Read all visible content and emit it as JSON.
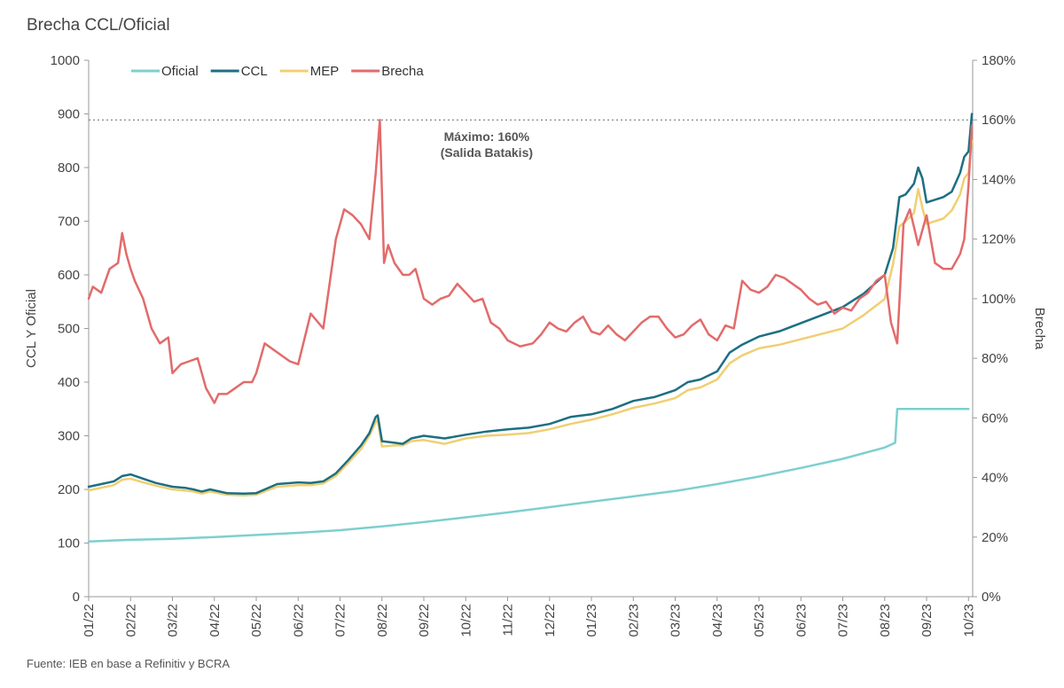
{
  "title": "Brecha CCL/Oficial",
  "source": "Fuente: IEB en base a Refinitiv y BCRA",
  "colors": {
    "oficial": "#7ecfcf",
    "ccl": "#1d6f82",
    "mep": "#f0cf73",
    "brecha": "#e26b6b",
    "axis": "#999999",
    "ref_line": "#666666"
  },
  "chart_data": {
    "type": "line",
    "title": "Brecha CCL/Oficial",
    "xlabel": "",
    "ylabel": "CCL Y Oficial",
    "y2label": "Brecha",
    "ylim": [
      0,
      1000
    ],
    "y2lim": [
      0,
      180
    ],
    "x_range": [
      0,
      21.1
    ],
    "yticks": [
      "0",
      "100",
      "200",
      "300",
      "400",
      "500",
      "600",
      "700",
      "800",
      "900",
      "1000"
    ],
    "y2ticks": [
      "0%",
      "20%",
      "40%",
      "60%",
      "80%",
      "100%",
      "120%",
      "140%",
      "160%",
      "180%"
    ],
    "x_tick_labels": [
      "01/22",
      "02/22",
      "03/22",
      "04/22",
      "05/22",
      "06/22",
      "07/22",
      "08/22",
      "09/22",
      "10/22",
      "11/22",
      "12/22",
      "01/23",
      "02/23",
      "03/23",
      "04/23",
      "05/23",
      "06/23",
      "07/23",
      "08/23",
      "09/23",
      "10/23"
    ],
    "legend": [
      "Oficial",
      "CCL",
      "MEP",
      "Brecha"
    ],
    "legend_position": "top-left",
    "reference_line": {
      "y2": 160,
      "style": "dotted"
    },
    "annotation": {
      "line1": "Máximo: 160%",
      "line2": "(Salida Batakis)",
      "x": 9.5,
      "y2": 160
    },
    "series": [
      {
        "name": "Oficial",
        "axis": "left",
        "x": [
          0,
          1,
          2,
          3,
          4,
          5,
          6,
          7,
          8,
          9,
          10,
          11,
          12,
          13,
          14,
          15,
          16,
          17,
          18,
          19,
          19.25,
          19.3,
          19.6,
          20,
          20.5,
          21.0
        ],
        "values": [
          103,
          106,
          108,
          111,
          115,
          119,
          124,
          131,
          139,
          148,
          157,
          167,
          177,
          187,
          197,
          210,
          224,
          240,
          257,
          278,
          287,
          350,
          350,
          350,
          350,
          350
        ]
      },
      {
        "name": "CCL",
        "axis": "left",
        "x": [
          0,
          0.3,
          0.6,
          0.8,
          1.0,
          1.3,
          1.6,
          2.0,
          2.3,
          2.5,
          2.7,
          2.9,
          3.3,
          3.7,
          4.0,
          4.5,
          5.0,
          5.3,
          5.6,
          5.9,
          6.2,
          6.5,
          6.7,
          6.85,
          6.9,
          7.0,
          7.3,
          7.5,
          7.7,
          8.0,
          8.5,
          9.0,
          9.5,
          10.0,
          10.5,
          11.0,
          11.5,
          12.0,
          12.5,
          13.0,
          13.5,
          14.0,
          14.3,
          14.6,
          15.0,
          15.3,
          15.6,
          16.0,
          16.5,
          17.0,
          17.5,
          18.0,
          18.5,
          19.0,
          19.2,
          19.35,
          19.5,
          19.7,
          19.8,
          19.9,
          20.0,
          20.2,
          20.4,
          20.6,
          20.8,
          20.9,
          21.0,
          21.08
        ],
        "values": [
          205,
          210,
          215,
          225,
          228,
          220,
          212,
          205,
          203,
          200,
          196,
          200,
          193,
          192,
          193,
          210,
          213,
          212,
          215,
          230,
          255,
          282,
          305,
          335,
          338,
          290,
          287,
          285,
          295,
          300,
          295,
          302,
          308,
          312,
          315,
          322,
          335,
          340,
          350,
          365,
          372,
          385,
          400,
          405,
          420,
          455,
          470,
          485,
          495,
          510,
          525,
          540,
          565,
          600,
          650,
          745,
          750,
          770,
          800,
          780,
          735,
          740,
          745,
          755,
          790,
          820,
          830,
          900
        ]
      },
      {
        "name": "MEP",
        "axis": "left",
        "x": [
          0,
          0.3,
          0.6,
          0.8,
          1.0,
          1.3,
          1.6,
          2.0,
          2.3,
          2.5,
          2.7,
          2.9,
          3.3,
          3.7,
          4.0,
          4.5,
          5.0,
          5.3,
          5.6,
          5.9,
          6.2,
          6.5,
          6.7,
          6.85,
          6.9,
          7.0,
          7.3,
          7.5,
          7.7,
          8.0,
          8.5,
          9.0,
          9.5,
          10.0,
          10.5,
          11.0,
          11.5,
          12.0,
          12.5,
          13.0,
          13.5,
          14.0,
          14.3,
          14.6,
          15.0,
          15.3,
          15.6,
          16.0,
          16.5,
          17.0,
          17.5,
          18.0,
          18.5,
          19.0,
          19.2,
          19.35,
          19.5,
          19.7,
          19.8,
          19.9,
          20.0,
          20.2,
          20.4,
          20.6,
          20.8,
          20.9,
          21.0,
          21.08
        ],
        "values": [
          198,
          203,
          208,
          218,
          220,
          213,
          207,
          200,
          198,
          196,
          192,
          196,
          190,
          189,
          190,
          205,
          208,
          208,
          211,
          225,
          250,
          275,
          300,
          325,
          330,
          280,
          282,
          282,
          290,
          292,
          285,
          295,
          300,
          302,
          305,
          312,
          322,
          330,
          340,
          352,
          360,
          370,
          385,
          390,
          405,
          435,
          450,
          463,
          470,
          480,
          490,
          500,
          525,
          555,
          620,
          690,
          700,
          715,
          760,
          725,
          695,
          700,
          705,
          720,
          750,
          780,
          790,
          850
        ]
      },
      {
        "name": "Brecha",
        "axis": "right",
        "x": [
          0,
          0.1,
          0.3,
          0.5,
          0.7,
          0.8,
          0.9,
          1.0,
          1.1,
          1.3,
          1.5,
          1.7,
          1.9,
          2.0,
          2.2,
          2.4,
          2.6,
          2.8,
          3.0,
          3.1,
          3.3,
          3.5,
          3.7,
          3.9,
          4.0,
          4.2,
          4.5,
          4.8,
          5.0,
          5.3,
          5.6,
          5.9,
          6.1,
          6.3,
          6.5,
          6.7,
          6.85,
          6.95,
          7.05,
          7.15,
          7.3,
          7.5,
          7.65,
          7.8,
          8.0,
          8.2,
          8.4,
          8.6,
          8.8,
          9.0,
          9.2,
          9.4,
          9.6,
          9.8,
          10.0,
          10.3,
          10.6,
          10.8,
          11.0,
          11.2,
          11.4,
          11.6,
          11.8,
          12.0,
          12.2,
          12.4,
          12.6,
          12.8,
          13.0,
          13.2,
          13.4,
          13.6,
          13.8,
          14.0,
          14.2,
          14.4,
          14.6,
          14.8,
          15.0,
          15.2,
          15.4,
          15.6,
          15.8,
          16.0,
          16.2,
          16.4,
          16.6,
          16.8,
          17.0,
          17.2,
          17.4,
          17.6,
          17.8,
          18.0,
          18.2,
          18.4,
          18.6,
          18.8,
          19.0,
          19.15,
          19.3,
          19.45,
          19.6,
          19.8,
          20.0,
          20.2,
          20.4,
          20.6,
          20.8,
          20.9,
          21.0,
          21.08
        ],
        "values": [
          100,
          104,
          102,
          110,
          112,
          122,
          115,
          110,
          106,
          100,
          90,
          85,
          87,
          75,
          78,
          79,
          80,
          70,
          65,
          68,
          68,
          70,
          72,
          72,
          75,
          85,
          82,
          79,
          78,
          95,
          90,
          120,
          130,
          128,
          125,
          120,
          142,
          160,
          112,
          118,
          112,
          108,
          108,
          110,
          100,
          98,
          100,
          101,
          105,
          102,
          99,
          100,
          92,
          90,
          86,
          84,
          85,
          88,
          92,
          90,
          89,
          92,
          94,
          89,
          88,
          91,
          88,
          86,
          89,
          92,
          94,
          94,
          90,
          87,
          88,
          91,
          93,
          88,
          86,
          91,
          90,
          106,
          103,
          102,
          104,
          108,
          107,
          105,
          103,
          100,
          98,
          99,
          95,
          97,
          96,
          100,
          102,
          106,
          108,
          92,
          85,
          125,
          130,
          118,
          128,
          112,
          110,
          110,
          115,
          120,
          138,
          158
        ]
      }
    ]
  }
}
